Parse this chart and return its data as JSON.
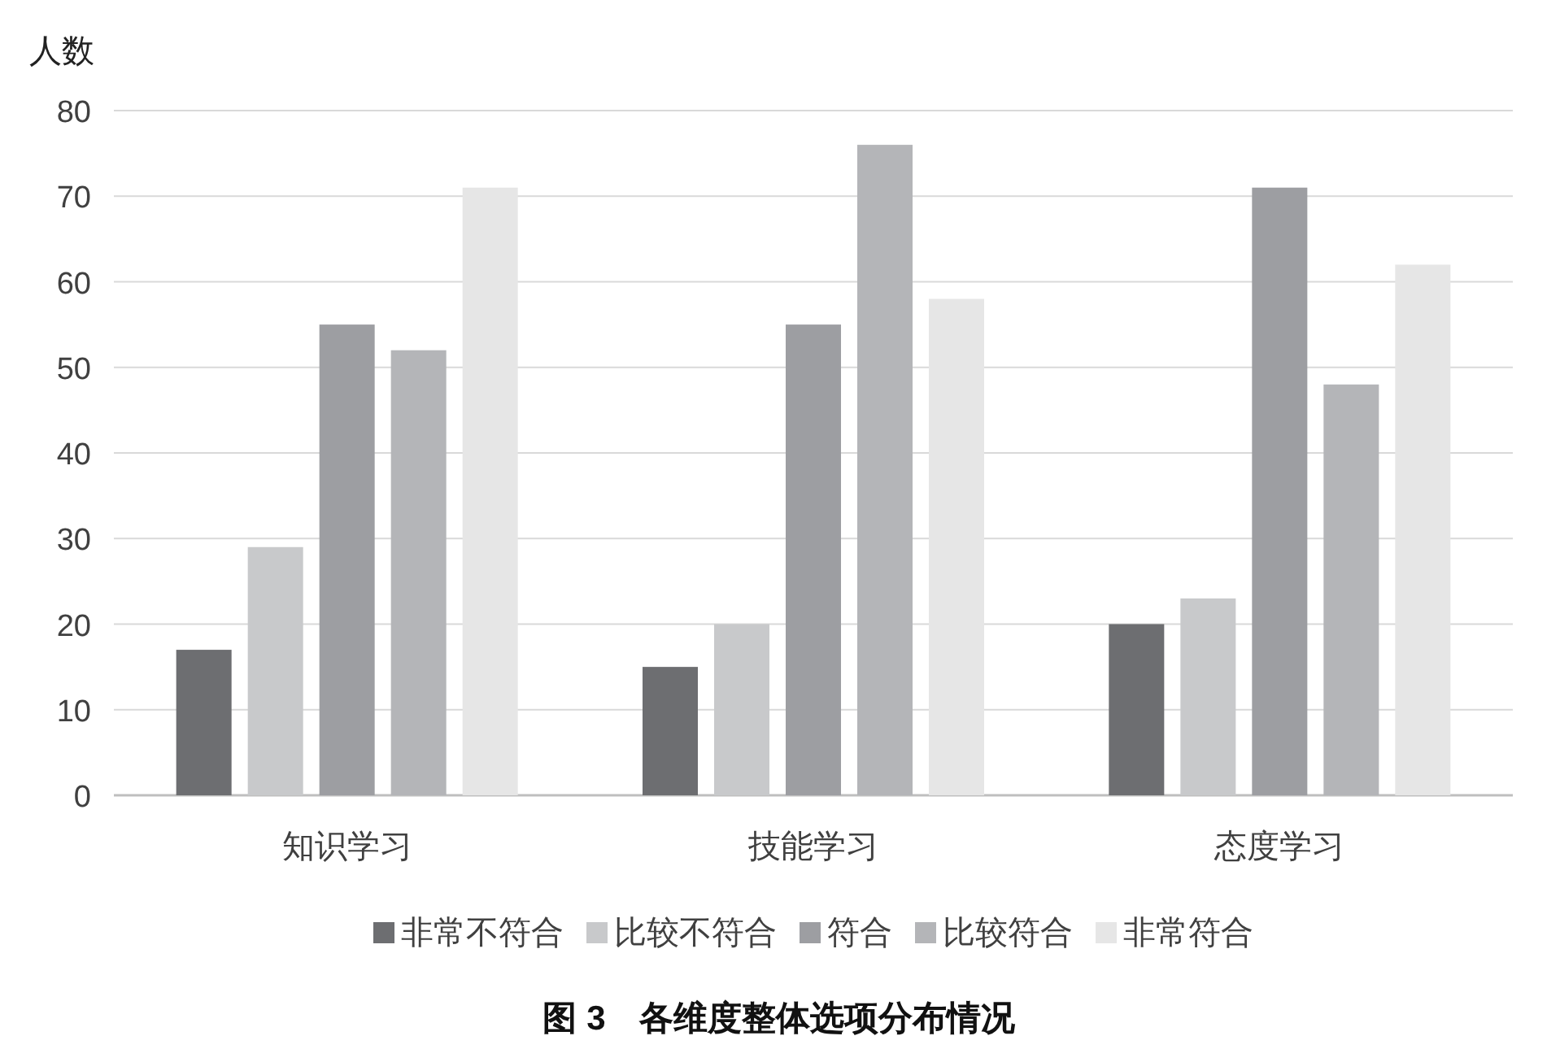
{
  "chart_data": {
    "type": "bar",
    "title": "图 3　各维度整体选项分布情况",
    "ylabel": "人数",
    "categories": [
      "知识学习",
      "技能学习",
      "态度学习"
    ],
    "series": [
      {
        "name": "非常不符合",
        "color": "#6d6e71",
        "values": [
          17,
          15,
          20
        ]
      },
      {
        "name": "比较不符合",
        "color": "#c8c9cb",
        "values": [
          29,
          20,
          23
        ]
      },
      {
        "name": "符合",
        "color": "#9d9ea2",
        "values": [
          55,
          55,
          71
        ]
      },
      {
        "name": "比较符合",
        "color": "#b4b5b8",
        "values": [
          52,
          76,
          48
        ]
      },
      {
        "name": "非常符合",
        "color": "#e6e6e6",
        "values": [
          71,
          58,
          62
        ]
      }
    ],
    "ylim": [
      0,
      80
    ],
    "yticks": [
      0,
      10,
      20,
      30,
      40,
      50,
      60,
      70,
      80
    ],
    "grid": "y",
    "legend": "bottom"
  }
}
